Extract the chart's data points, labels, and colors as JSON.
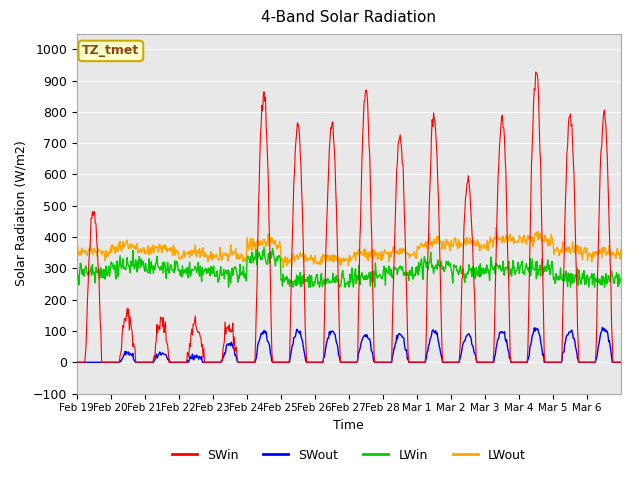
{
  "title": "4-Band Solar Radiation",
  "ylabel": "Solar Radiation (W/m2)",
  "xlabel": "Time",
  "annotation": "TZ_tmet",
  "ylim": [
    -100,
    1050
  ],
  "yticks": [
    -100,
    0,
    100,
    200,
    300,
    400,
    500,
    600,
    700,
    800,
    900,
    1000
  ],
  "xtick_labels": [
    "Feb 19",
    "Feb 20",
    "Feb 21",
    "Feb 22",
    "Feb 23",
    "Feb 24",
    "Feb 25",
    "Feb 26",
    "Feb 27",
    "Feb 28",
    "Mar 1",
    "Mar 2",
    "Mar 3",
    "Mar 4",
    "Mar 5",
    "Mar 6"
  ],
  "colors": {
    "SWin": "#ff0000",
    "SWout": "#0000ff",
    "LWin": "#00cc00",
    "LWout": "#ffa500"
  },
  "bg_color": "#e8e8e8",
  "grid_color": "#ffffff",
  "n_days": 16,
  "hours_per_day": 48,
  "sw_peaks": [
    490,
    150,
    130,
    120,
    110,
    870,
    750,
    760,
    870,
    730,
    790,
    580,
    780,
    930,
    790,
    800
  ],
  "swout_peaks": [
    0,
    30,
    25,
    20,
    60,
    100,
    100,
    100,
    90,
    90,
    100,
    90,
    100,
    105,
    100,
    110
  ],
  "lwin_levels": [
    290,
    310,
    300,
    290,
    280,
    340,
    260,
    260,
    270,
    290,
    310,
    290,
    300,
    300,
    270,
    265
  ],
  "lwout_levels": [
    350,
    370,
    360,
    345,
    340,
    380,
    330,
    330,
    340,
    350,
    380,
    380,
    390,
    395,
    360,
    350
  ]
}
